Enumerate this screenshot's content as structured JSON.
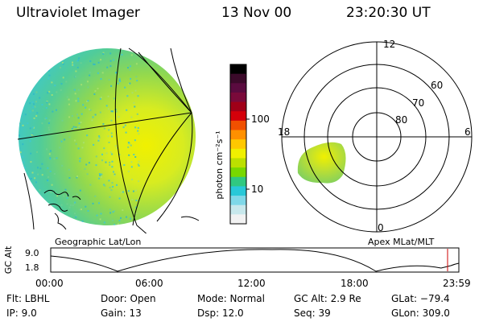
{
  "header": {
    "instrument": "Ultraviolet Imager",
    "date": "13 Nov 00",
    "time": "23:20:30 UT"
  },
  "globe": {
    "label": "Geographic Lat/Lon"
  },
  "colorbar": {
    "unit": "photon cm⁻²s⁻¹",
    "ticks": [
      "100",
      "10"
    ],
    "colors": [
      "#000000",
      "#3b0a2a",
      "#5a0b3f",
      "#7a0a3a",
      "#a00018",
      "#d4000a",
      "#f05000",
      "#ff9000",
      "#ffc800",
      "#f0f000",
      "#bce000",
      "#78d800",
      "#30c880",
      "#28c8d8",
      "#7fd8e8",
      "#c8e8ec",
      "#f2f2f2"
    ]
  },
  "polar": {
    "label": "Apex MLat/MLT",
    "lat_labels": [
      "60",
      "70",
      "80"
    ],
    "mlt_labels": {
      "top": "12",
      "left": "18",
      "right": "6",
      "bottom": "0"
    }
  },
  "altplot": {
    "ylabel": "GC Alt",
    "yticks": [
      "9.0",
      "1.8"
    ],
    "xticks": [
      "00:00",
      "06:00",
      "12:00",
      "18:00",
      "23:59"
    ],
    "marker_color": "#cc0000"
  },
  "info": {
    "flt": "Flt: LBHL",
    "ip": "IP:  9.0",
    "door": "Door: Open",
    "gain": "Gain: 13",
    "mode": "Mode: Normal",
    "dsp": "Dsp:   12.0",
    "gcalt": "GC Alt: 2.9 Re",
    "seq": "Seq: 39",
    "glat": "GLat: −79.4",
    "glon": "GLon: 309.0"
  }
}
